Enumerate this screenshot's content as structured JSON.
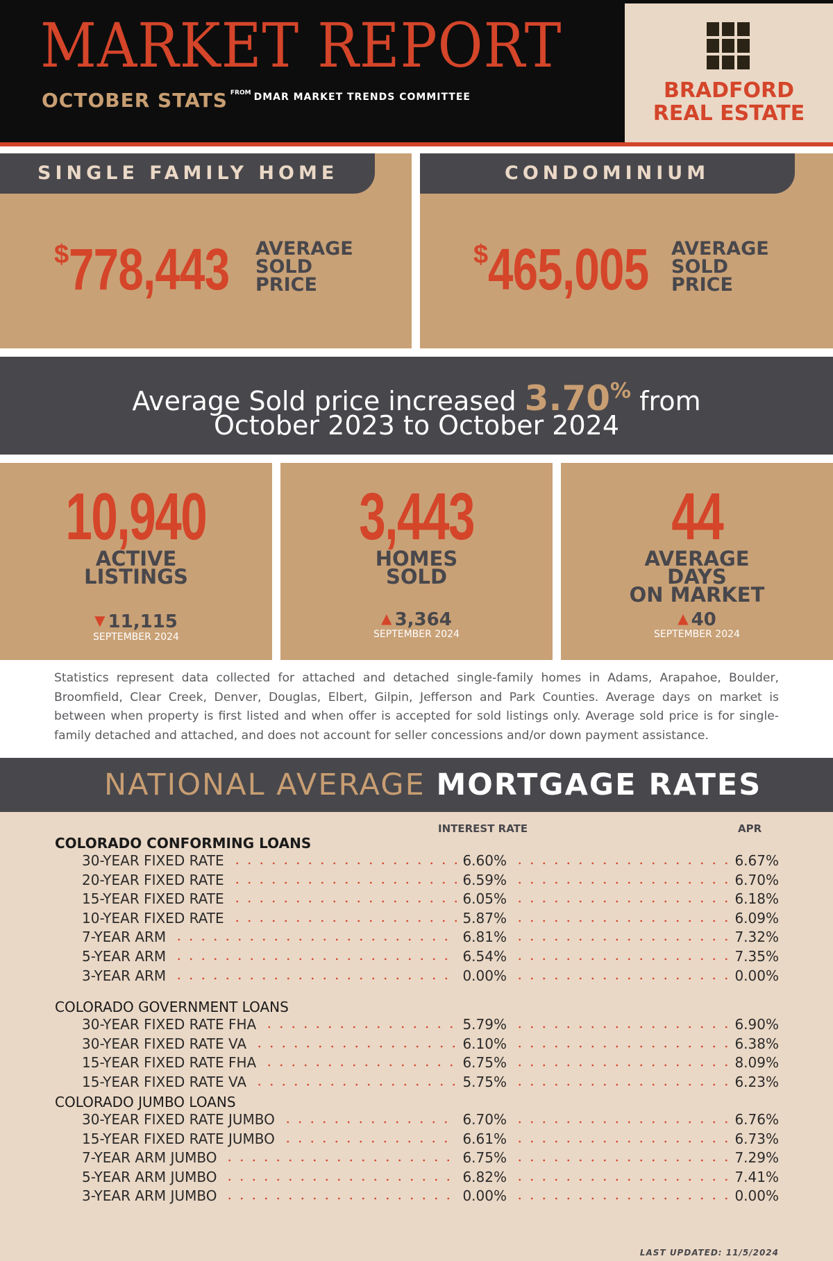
{
  "header": {
    "title": "MARKET REPORT",
    "subtitle": "OCTOBER STATS",
    "from": "FROM",
    "source": "DMAR MARKET TRENDS COMMITTEE",
    "logo_line1": "BRADFORD",
    "logo_line2": "REAL ESTATE",
    "logo_icon": "grid-logo-icon"
  },
  "cards": {
    "single_family": {
      "tab": "SINGLE FAMILY HOME",
      "dollar": "$",
      "price": "778,443",
      "label1": "AVERAGE",
      "label2": "SOLD",
      "label3": "PRICE"
    },
    "condo": {
      "tab": "CONDOMINIUM",
      "dollar": "$",
      "price": "465,005",
      "label1": "AVERAGE",
      "label2": "SOLD",
      "label3": "PRICE"
    }
  },
  "banner": {
    "pre": "Average Sold price increased ",
    "pct": "3.70",
    "pct_sign": "%",
    "post": " from",
    "line2": "October 2023 to October 2024"
  },
  "stats": [
    {
      "value": "10,940",
      "label1": "ACTIVE",
      "label2": "LISTINGS",
      "label3": "",
      "direction": "down",
      "arrow": "▼",
      "prev": "11,115",
      "month": "SEPTEMBER 2024"
    },
    {
      "value": "3,443",
      "label1": "HOMES",
      "label2": "SOLD",
      "label3": "",
      "direction": "up",
      "arrow": "▲",
      "prev": "3,364",
      "month": "SEPTEMBER 2024"
    },
    {
      "value": "44",
      "label1": "AVERAGE",
      "label2": "DAYS",
      "label3": "ON MARKET",
      "direction": "up",
      "arrow": "▲",
      "prev": "40",
      "month": "SEPTEMBER 2024"
    }
  ],
  "disclaimer": "Statistics represent data collected for attached and detached single-family homes in Adams, Arapahoe, Boulder, Broomfield, Clear Creek, Denver, Douglas, Elbert, Gilpin, Jefferson and Park Counties. Average days on market is between when property is first listed and when offer is accepted for sold listings only. Average sold price is for single-family detached and attached, and does not account for seller concessions and/or down payment assistance.",
  "mortgage": {
    "heading_light": "NATIONAL AVERAGE ",
    "heading_bold": "MORTGAGE RATES",
    "col_interest": "INTEREST RATE",
    "col_apr": "APR",
    "groups": [
      {
        "title": "COLORADO CONFORMING LOANS",
        "rows": [
          {
            "name": "30-YEAR FIXED RATE",
            "rate": "6.60%",
            "apr": "6.67%"
          },
          {
            "name": "20-YEAR FIXED RATE",
            "rate": "6.59%",
            "apr": "6.70%"
          },
          {
            "name": "15-YEAR FIXED RATE",
            "rate": "6.05%",
            "apr": "6.18%"
          },
          {
            "name": "10-YEAR FIXED RATE",
            "rate": "5.87%",
            "apr": "6.09%"
          },
          {
            "name": "7-YEAR ARM",
            "rate": "6.81%",
            "apr": "7.32%"
          },
          {
            "name": "5-YEAR ARM",
            "rate": "6.54%",
            "apr": "7.35%"
          },
          {
            "name": "3-YEAR ARM",
            "rate": "0.00%",
            "apr": "0.00%"
          }
        ]
      },
      {
        "title": "COLORADO GOVERNMENT LOANS",
        "rows": [
          {
            "name": "30-YEAR FIXED RATE FHA",
            "rate": "5.79%",
            "apr": "6.90%"
          },
          {
            "name": "30-YEAR FIXED RATE VA",
            "rate": "6.10%",
            "apr": "6.38%"
          },
          {
            "name": "15-YEAR FIXED RATE FHA",
            "rate": "6.75%",
            "apr": "8.09%"
          },
          {
            "name": "15-YEAR FIXED RATE VA",
            "rate": "5.75%",
            "apr": "6.23%"
          }
        ]
      },
      {
        "title": "COLORADO JUMBO LOANS",
        "rows": [
          {
            "name": "30-YEAR FIXED RATE JUMBO",
            "rate": "6.70%",
            "apr": "6.76%"
          },
          {
            "name": "15-YEAR FIXED RATE JUMBO",
            "rate": "6.61%",
            "apr": "6.73%"
          },
          {
            "name": "7-YEAR ARM JUMBO",
            "rate": "6.75%",
            "apr": "7.29%"
          },
          {
            "name": "5-YEAR ARM JUMBO",
            "rate": "6.82%",
            "apr": "7.41%"
          },
          {
            "name": "3-YEAR ARM JUMBO",
            "rate": "0.00%",
            "apr": "0.00%"
          }
        ]
      }
    ],
    "updated": "LAST UPDATED: 11/5/2024"
  }
}
